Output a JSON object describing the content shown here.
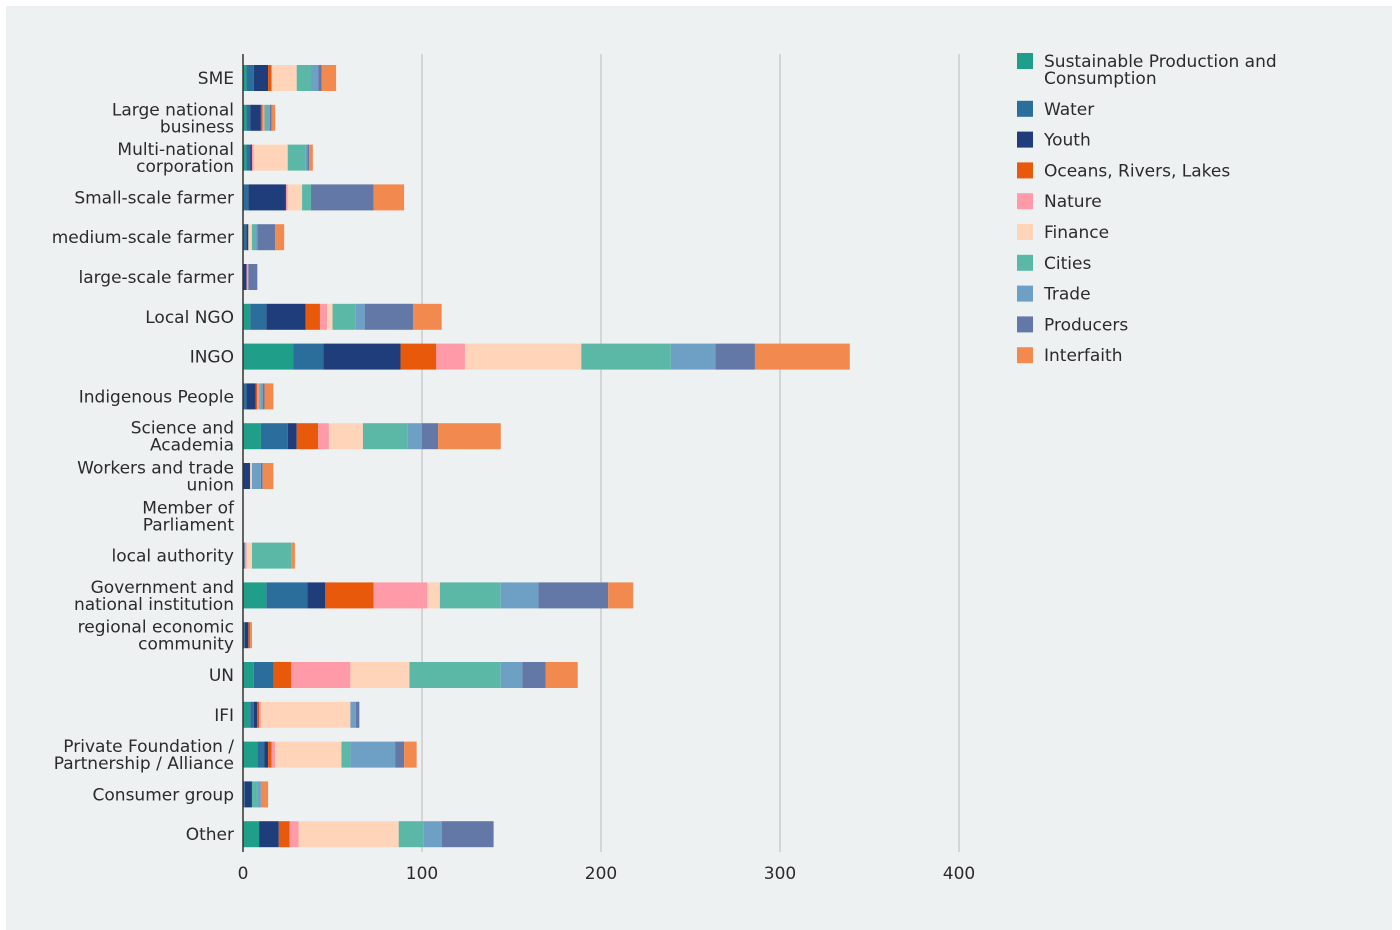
{
  "chart_data": {
    "type": "bar",
    "orientation": "horizontal",
    "stacked": true,
    "categories": [
      "SME",
      "Large national business",
      "Multi-national corporation",
      "Small-scale farmer",
      "medium-scale farmer",
      "large-scale farmer",
      "Local NGO",
      "INGO",
      "Indigenous People",
      "Science and Academia",
      "Workers and trade union",
      "Member of Parliament",
      "local authority",
      "Government and national institution",
      "regional economic community",
      "UN",
      "IFI",
      "Private Foundation / Partnership / Alliance",
      "Consumer group",
      "Other"
    ],
    "category_lines": [
      [
        "SME"
      ],
      [
        "Large national",
        "business"
      ],
      [
        "Multi-national",
        "corporation"
      ],
      [
        "Small-scale farmer"
      ],
      [
        "medium-scale farmer"
      ],
      [
        "large-scale farmer"
      ],
      [
        "Local NGO"
      ],
      [
        "INGO"
      ],
      [
        "Indigenous People"
      ],
      [
        "Science and",
        "Academia"
      ],
      [
        "Workers and trade",
        "union"
      ],
      [
        "Member of",
        "Parliament"
      ],
      [
        "local authority"
      ],
      [
        "Government and",
        "national institution"
      ],
      [
        "regional economic",
        "community"
      ],
      [
        "UN"
      ],
      [
        "IFI"
      ],
      [
        "Private Foundation /",
        "Partnership / Alliance"
      ],
      [
        "Consumer group"
      ],
      [
        "Other"
      ]
    ],
    "series": [
      {
        "name": "Sustainable Production and Consumption",
        "color": "#1f9e89",
        "values": [
          2,
          2,
          2,
          0,
          0,
          0,
          4,
          28,
          0,
          10,
          0,
          0,
          0,
          13,
          0,
          6,
          4,
          8,
          0,
          9
        ]
      },
      {
        "name": "Water",
        "color": "#2c6e9b",
        "values": [
          4,
          2,
          2,
          3,
          2,
          0,
          9,
          17,
          2,
          15,
          0,
          0,
          1,
          23,
          1,
          11,
          2,
          4,
          1,
          0
        ]
      },
      {
        "name": "Youth",
        "color": "#1f3d7a",
        "values": [
          8,
          6,
          1,
          21,
          1,
          2,
          22,
          43,
          5,
          5,
          4,
          0,
          0,
          10,
          2,
          0,
          2,
          2,
          4,
          11
        ]
      },
      {
        "name": "Oceans, Rivers, Lakes",
        "color": "#e8590c",
        "values": [
          2,
          1,
          0,
          0,
          0,
          0,
          8,
          20,
          1,
          12,
          0,
          0,
          0,
          27,
          1,
          10,
          1,
          2,
          0,
          6
        ]
      },
      {
        "name": "Nature",
        "color": "#ff9aa8",
        "values": [
          0,
          1,
          1,
          1,
          0,
          1,
          4,
          16,
          1,
          6,
          0,
          0,
          1,
          30,
          0,
          33,
          1,
          2,
          0,
          5
        ]
      },
      {
        "name": "Finance",
        "color": "#ffd4b8",
        "values": [
          14,
          0,
          19,
          8,
          2,
          0,
          3,
          65,
          0,
          19,
          1,
          0,
          3,
          7,
          0,
          33,
          50,
          37,
          0,
          56
        ]
      },
      {
        "name": "Cities",
        "color": "#5bb8a6",
        "values": [
          8,
          2,
          10,
          5,
          2,
          0,
          13,
          50,
          1,
          25,
          0,
          0,
          22,
          34,
          0,
          51,
          0,
          5,
          3,
          14
        ]
      },
      {
        "name": "Trade",
        "color": "#6e9fc4",
        "values": [
          4,
          1,
          1,
          0,
          1,
          0,
          5,
          25,
          1,
          8,
          5,
          0,
          0,
          21,
          0,
          12,
          3,
          25,
          2,
          10
        ]
      },
      {
        "name": "Producers",
        "color": "#6378a6",
        "values": [
          2,
          1,
          1,
          35,
          10,
          5,
          27,
          22,
          1,
          9,
          1,
          0,
          0,
          39,
          0,
          13,
          2,
          5,
          0,
          29
        ]
      },
      {
        "name": "Interfaith",
        "color": "#f2894e",
        "values": [
          8,
          2,
          2,
          17,
          5,
          0,
          16,
          53,
          5,
          35,
          6,
          0,
          2,
          14,
          1,
          18,
          0,
          7,
          4,
          0
        ]
      }
    ],
    "legend_lines": [
      [
        "Sustainable Production and",
        "Consumption"
      ],
      [
        "Water"
      ],
      [
        "Youth"
      ],
      [
        "Oceans, Rivers, Lakes"
      ],
      [
        "Nature"
      ],
      [
        "Finance"
      ],
      [
        "Cities"
      ],
      [
        "Trade"
      ],
      [
        "Producers"
      ],
      [
        "Interfaith"
      ]
    ],
    "xlim": [
      0,
      400
    ],
    "x_ticks": [
      0,
      100,
      200,
      300,
      400
    ],
    "grid": true,
    "legend_position": "right",
    "title": "",
    "xlabel": "",
    "ylabel": ""
  },
  "colors": {
    "background": "#eef1f1",
    "grid": "#c4c4c4",
    "axis": "#333333"
  }
}
